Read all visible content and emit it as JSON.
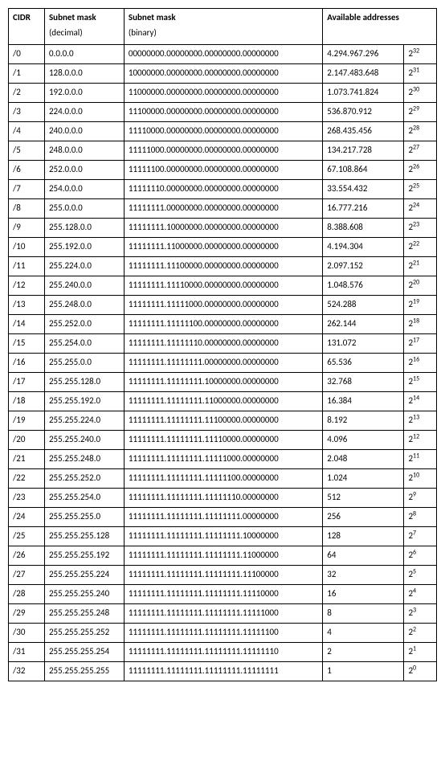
{
  "table": {
    "headers": {
      "cidr": "CIDR",
      "mask_dec": "Subnet mask",
      "mask_dec_sub": "(decimal)",
      "mask_bin": "Subnet mask",
      "mask_bin_sub": "(binary)",
      "avail": "Available addresses"
    },
    "rows": [
      {
        "cidr": "/0",
        "dec": "0.0.0.0",
        "bin": "00000000.00000000.00000000.00000000",
        "count": "4.294.967.296",
        "exp": "32"
      },
      {
        "cidr": "/1",
        "dec": "128.0.0.0",
        "bin": "10000000.00000000.00000000.00000000",
        "count": "2.147.483.648",
        "exp": "31"
      },
      {
        "cidr": "/2",
        "dec": "192.0.0.0",
        "bin": "11000000.00000000.00000000.00000000",
        "count": "1.073.741.824",
        "exp": "30"
      },
      {
        "cidr": "/3",
        "dec": "224.0.0.0",
        "bin": "11100000.00000000.00000000.00000000",
        "count": "536.870.912",
        "exp": "29"
      },
      {
        "cidr": "/4",
        "dec": "240.0.0.0",
        "bin": "11110000.00000000.00000000.00000000",
        "count": "268.435.456",
        "exp": "28"
      },
      {
        "cidr": "/5",
        "dec": "248.0.0.0",
        "bin": "11111000.00000000.00000000.00000000",
        "count": "134.217.728",
        "exp": "27"
      },
      {
        "cidr": "/6",
        "dec": "252.0.0.0",
        "bin": "11111100.00000000.00000000.00000000",
        "count": "67.108.864",
        "exp": "26"
      },
      {
        "cidr": "/7",
        "dec": "254.0.0.0",
        "bin": "11111110.00000000.00000000.00000000",
        "count": "33.554.432",
        "exp": "25"
      },
      {
        "cidr": "/8",
        "dec": "255.0.0.0",
        "bin": "11111111.00000000.00000000.00000000",
        "count": "16.777.216",
        "exp": "24"
      },
      {
        "cidr": "/9",
        "dec": "255.128.0.0",
        "bin": "11111111.10000000.00000000.00000000",
        "count": "8.388.608",
        "exp": "23"
      },
      {
        "cidr": "/10",
        "dec": "255.192.0.0",
        "bin": "11111111.11000000.00000000.00000000",
        "count": "4.194.304",
        "exp": "22"
      },
      {
        "cidr": "/11",
        "dec": "255.224.0.0",
        "bin": "11111111.11100000.00000000.00000000",
        "count": "2.097.152",
        "exp": "21"
      },
      {
        "cidr": "/12",
        "dec": "255.240.0.0",
        "bin": "11111111.11110000.00000000.00000000",
        "count": "1.048.576",
        "exp": "20"
      },
      {
        "cidr": "/13",
        "dec": "255.248.0.0",
        "bin": "11111111.11111000.00000000.00000000",
        "count": "524.288",
        "exp": "19"
      },
      {
        "cidr": "/14",
        "dec": "255.252.0.0",
        "bin": "11111111.11111100.00000000.00000000",
        "count": "262.144",
        "exp": "18"
      },
      {
        "cidr": "/15",
        "dec": "255.254.0.0",
        "bin": "11111111.11111110.00000000.00000000",
        "count": "131.072",
        "exp": "17"
      },
      {
        "cidr": "/16",
        "dec": "255.255.0.0",
        "bin": "11111111.11111111.00000000.00000000",
        "count": "65.536",
        "exp": "16"
      },
      {
        "cidr": "/17",
        "dec": "255.255.128.0",
        "bin": "11111111.11111111.10000000.00000000",
        "count": "32.768",
        "exp": "15"
      },
      {
        "cidr": "/18",
        "dec": "255.255.192.0",
        "bin": "11111111.11111111.11000000.00000000",
        "count": "16.384",
        "exp": "14"
      },
      {
        "cidr": "/19",
        "dec": "255.255.224.0",
        "bin": "11111111.11111111.11100000.00000000",
        "count": "8.192",
        "exp": "13"
      },
      {
        "cidr": "/20",
        "dec": "255.255.240.0",
        "bin": "11111111.11111111.11110000.00000000",
        "count": "4.096",
        "exp": "12"
      },
      {
        "cidr": "/21",
        "dec": "255.255.248.0",
        "bin": "11111111.11111111.11111000.00000000",
        "count": "2.048",
        "exp": "11"
      },
      {
        "cidr": "/22",
        "dec": "255.255.252.0",
        "bin": "11111111.11111111.11111100.00000000",
        "count": "1.024",
        "exp": "10"
      },
      {
        "cidr": "/23",
        "dec": "255.255.254.0",
        "bin": "11111111.11111111.11111110.00000000",
        "count": "512",
        "exp": "9"
      },
      {
        "cidr": "/24",
        "dec": "255.255.255.0",
        "bin": "11111111.11111111.11111111.00000000",
        "count": "256",
        "exp": "8"
      },
      {
        "cidr": "/25",
        "dec": "255.255.255.128",
        "bin": "11111111.11111111.11111111.10000000",
        "count": "128",
        "exp": "7"
      },
      {
        "cidr": "/26",
        "dec": "255.255.255.192",
        "bin": "11111111.11111111.11111111.11000000",
        "count": "64",
        "exp": "6"
      },
      {
        "cidr": "/27",
        "dec": "255.255.255.224",
        "bin": "11111111.11111111.11111111.11100000",
        "count": "32",
        "exp": "5"
      },
      {
        "cidr": "/28",
        "dec": "255.255.255.240",
        "bin": "11111111.11111111.11111111.11110000",
        "count": "16",
        "exp": "4"
      },
      {
        "cidr": "/29",
        "dec": "255.255.255.248",
        "bin": "11111111.11111111.11111111.11111000",
        "count": "8",
        "exp": "3"
      },
      {
        "cidr": "/30",
        "dec": "255.255.255.252",
        "bin": "11111111.11111111.11111111.11111100",
        "count": "4",
        "exp": "2"
      },
      {
        "cidr": "/31",
        "dec": "255.255.255.254",
        "bin": "11111111.11111111.11111111.11111110",
        "count": "2",
        "exp": "1"
      },
      {
        "cidr": "/32",
        "dec": "255.255.255.255",
        "bin": "11111111.11111111.11111111.11111111",
        "count": "1",
        "exp": "0"
      }
    ]
  },
  "colors": {
    "border": "#000000",
    "background": "#ffffff",
    "text": "#000000"
  }
}
